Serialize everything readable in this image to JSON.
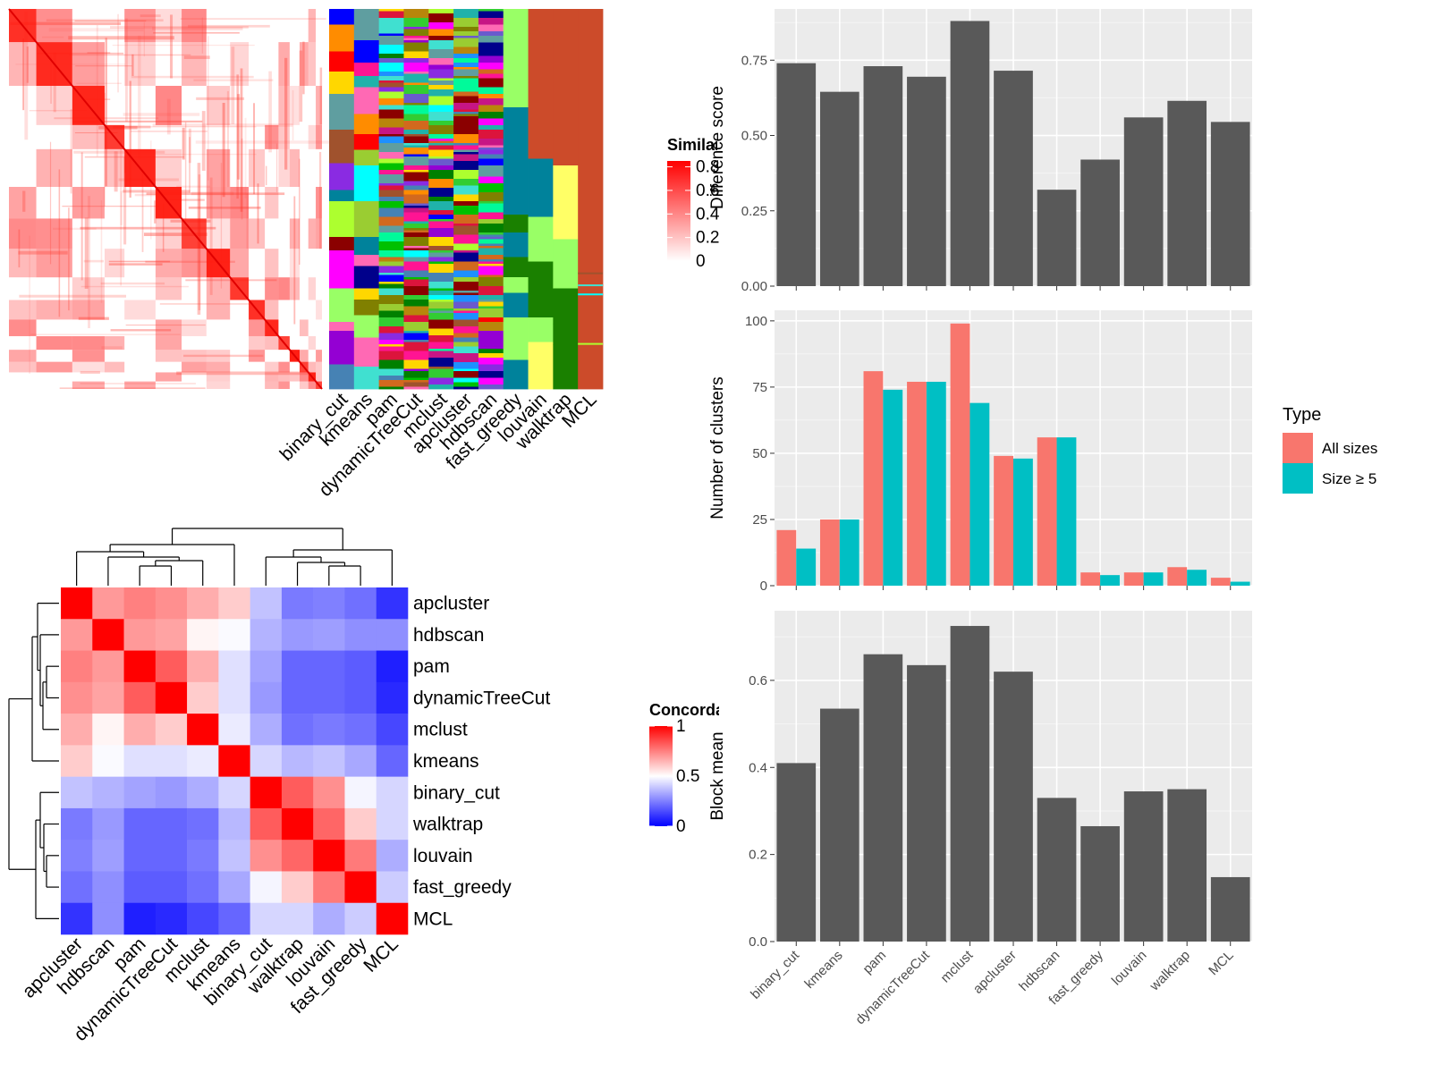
{
  "chart_data": [
    {
      "type": "heatmap",
      "panel": "similarity-matrix",
      "legend_title": "Similarity",
      "legend_ticks": [
        "0",
        "0.2",
        "0.4",
        "0.6",
        "0.8"
      ],
      "colors": {
        "low": "#ffffff",
        "high": "#ff0000"
      },
      "diagonal_blocks": [
        44,
        58,
        52,
        32,
        50,
        42,
        40,
        38,
        30,
        26,
        22,
        18,
        16,
        14,
        12,
        10
      ]
    },
    {
      "type": "heatmap",
      "panel": "cluster-membership",
      "columns": [
        "binary_cut",
        "kmeans",
        "pam",
        "dynamicTreeCut",
        "mclust",
        "apcluster",
        "hdbscan",
        "fast_greedy",
        "louvain",
        "walktrap",
        "MCL"
      ],
      "palette": [
        "#ff0000",
        "#00c000",
        "#0000ff",
        "#ffd700",
        "#ff00ff",
        "#00ffff",
        "#ff8c00",
        "#8b0000",
        "#008000",
        "#00008b",
        "#9acd32",
        "#9400d3",
        "#40e0d0",
        "#ff1493",
        "#a0522d",
        "#1e90ff",
        "#adff2f",
        "#8a2be2",
        "#00fa9a",
        "#dc143c",
        "#808000",
        "#4682b4",
        "#d2691e",
        "#20b2aa",
        "#ff69b4",
        "#6a5acd",
        "#32cd32",
        "#c71585",
        "#b8860b",
        "#5f9ea0"
      ],
      "mcl_color": "#cc4b2a",
      "big_colors": [
        "#99ff66",
        "#00829b",
        "#ffff66",
        "#1a8000",
        "#cc4b2a"
      ]
    },
    {
      "type": "heatmap",
      "panel": "concordance",
      "legend_title": "Concordance",
      "legend_ticks": [
        "0",
        "0.5",
        "1"
      ],
      "colors": {
        "low": "#0000ff",
        "mid": "#ffffff",
        "high": "#ff0000"
      },
      "row_labels": [
        "apcluster",
        "hdbscan",
        "pam",
        "dynamicTreeCut",
        "mclust",
        "kmeans",
        "binary_cut",
        "walktrap",
        "louvain",
        "fast_greedy",
        "MCL"
      ],
      "col_labels": [
        "apcluster",
        "hdbscan",
        "pam",
        "dynamicTreeCut",
        "mclust",
        "kmeans",
        "binary_cut",
        "walktrap",
        "louvain",
        "fast_greedy",
        "MCL"
      ],
      "matrix": [
        [
          1.0,
          0.7,
          0.75,
          0.72,
          0.66,
          0.6,
          0.38,
          0.24,
          0.25,
          0.22,
          0.1
        ],
        [
          0.7,
          1.0,
          0.7,
          0.68,
          0.52,
          0.49,
          0.35,
          0.3,
          0.31,
          0.28,
          0.28
        ],
        [
          0.75,
          0.7,
          1.0,
          0.82,
          0.66,
          0.44,
          0.32,
          0.2,
          0.2,
          0.18,
          0.06
        ],
        [
          0.72,
          0.68,
          0.82,
          1.0,
          0.6,
          0.44,
          0.3,
          0.2,
          0.2,
          0.18,
          0.08
        ],
        [
          0.66,
          0.52,
          0.66,
          0.6,
          1.0,
          0.46,
          0.34,
          0.22,
          0.24,
          0.22,
          0.14
        ],
        [
          0.6,
          0.49,
          0.44,
          0.44,
          0.46,
          1.0,
          0.42,
          0.36,
          0.38,
          0.33,
          0.2
        ],
        [
          0.38,
          0.35,
          0.32,
          0.3,
          0.34,
          0.42,
          1.0,
          0.82,
          0.72,
          0.48,
          0.42
        ],
        [
          0.24,
          0.3,
          0.2,
          0.2,
          0.22,
          0.36,
          0.82,
          1.0,
          0.8,
          0.6,
          0.42
        ],
        [
          0.25,
          0.31,
          0.2,
          0.2,
          0.24,
          0.38,
          0.72,
          0.8,
          1.0,
          0.76,
          0.34
        ],
        [
          0.22,
          0.28,
          0.18,
          0.18,
          0.22,
          0.33,
          0.48,
          0.6,
          0.76,
          1.0,
          0.4
        ],
        [
          0.1,
          0.28,
          0.06,
          0.08,
          0.14,
          0.2,
          0.42,
          0.42,
          0.34,
          0.4,
          1.0
        ]
      ]
    },
    {
      "type": "bar",
      "panel": "difference-score",
      "categories": [
        "binary_cut",
        "kmeans",
        "pam",
        "dynamicTreeCut",
        "mclust",
        "apcluster",
        "hdbscan",
        "fast_greedy",
        "louvain",
        "walktrap",
        "MCL"
      ],
      "values": [
        0.74,
        0.645,
        0.73,
        0.695,
        0.88,
        0.715,
        0.32,
        0.42,
        0.56,
        0.615,
        0.545
      ],
      "ylabel": "Difference score",
      "ylim": [
        0,
        0.92
      ],
      "yticks": [
        0,
        0.25,
        0.5,
        0.75
      ],
      "ytick_labels": [
        "0.00",
        "0.25",
        "0.50",
        "0.75"
      ],
      "bar_color": "#595959",
      "panel_bg": "#ebebeb",
      "grid": true
    },
    {
      "type": "bar",
      "panel": "number-of-clusters",
      "categories": [
        "binary_cut",
        "kmeans",
        "pam",
        "dynamicTreeCut",
        "mclust",
        "apcluster",
        "hdbscan",
        "fast_greedy",
        "louvain",
        "walktrap",
        "MCL"
      ],
      "series": [
        {
          "name": "All sizes",
          "color": "#f8766d",
          "values": [
            21,
            25,
            81,
            77,
            99,
            49,
            56,
            5,
            5,
            7,
            3
          ]
        },
        {
          "name": "Size ≥ 5",
          "color": "#00bfc4",
          "values": [
            14,
            25,
            74,
            77,
            69,
            48,
            56,
            4,
            5,
            6,
            1.5
          ]
        }
      ],
      "ylabel": "Number of clusters",
      "ylim": [
        0,
        104
      ],
      "yticks": [
        0,
        25,
        50,
        75,
        100
      ],
      "ytick_labels": [
        "0",
        "25",
        "50",
        "75",
        "100"
      ],
      "legend_title": "Type",
      "legend_position": "right",
      "panel_bg": "#ebebeb",
      "grid": true
    },
    {
      "type": "bar",
      "panel": "block-mean",
      "categories": [
        "binary_cut",
        "kmeans",
        "pam",
        "dynamicTreeCut",
        "mclust",
        "apcluster",
        "hdbscan",
        "fast_greedy",
        "louvain",
        "walktrap",
        "MCL"
      ],
      "values": [
        0.41,
        0.535,
        0.66,
        0.635,
        0.725,
        0.62,
        0.33,
        0.265,
        0.345,
        0.35,
        0.148
      ],
      "ylabel": "Block mean",
      "ylim": [
        0,
        0.76
      ],
      "yticks": [
        0,
        0.2,
        0.4,
        0.6
      ],
      "ytick_labels": [
        "0.0",
        "0.2",
        "0.4",
        "0.6"
      ],
      "bar_color": "#595959",
      "panel_bg": "#ebebeb",
      "grid": true
    }
  ]
}
